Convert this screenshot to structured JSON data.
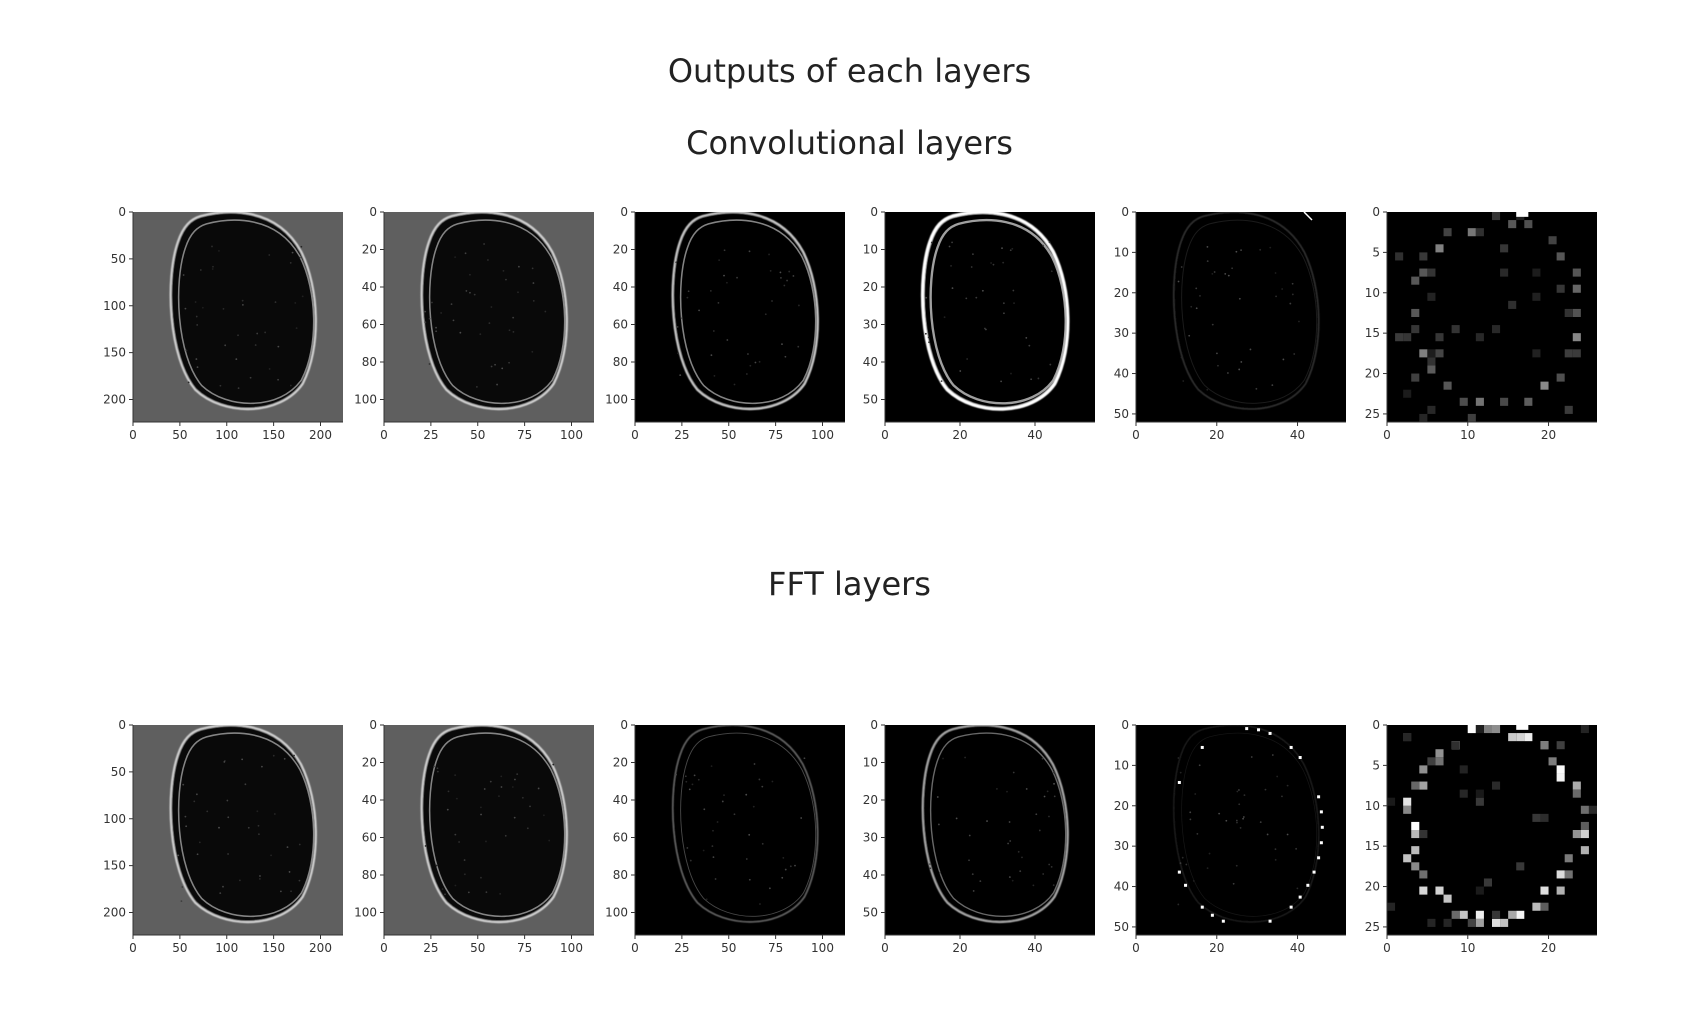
{
  "figure": {
    "title": "Outputs of each layers",
    "sections": [
      {
        "title": "Convolutional layers",
        "key": "conv"
      },
      {
        "title": "FFT layers",
        "key": "fft"
      }
    ]
  },
  "chart_data": [
    {
      "type": "heatmap",
      "section": "Convolutional layers",
      "index": 1,
      "style": "conv",
      "background": "gray",
      "xlim": [
        0,
        224
      ],
      "ylim": [
        224,
        0
      ],
      "xticks": [
        "0",
        "50",
        "100",
        "150",
        "200"
      ],
      "yticks": [
        "0",
        "50",
        "100",
        "150",
        "200"
      ],
      "xtick_values": [
        0,
        50,
        100,
        150,
        200
      ],
      "ytick_values": [
        0,
        50,
        100,
        150,
        200
      ],
      "grid": false
    },
    {
      "type": "heatmap",
      "section": "Convolutional layers",
      "index": 2,
      "style": "conv",
      "background": "gray",
      "xlim": [
        0,
        112
      ],
      "ylim": [
        112,
        0
      ],
      "xticks": [
        "0",
        "25",
        "50",
        "75",
        "100"
      ],
      "yticks": [
        "0",
        "20",
        "40",
        "60",
        "80",
        "100"
      ],
      "xtick_values": [
        0,
        25,
        50,
        75,
        100
      ],
      "ytick_values": [
        0,
        20,
        40,
        60,
        80,
        100
      ],
      "grid": false
    },
    {
      "type": "heatmap",
      "section": "Convolutional layers",
      "index": 3,
      "style": "conv",
      "background": "black",
      "xlim": [
        0,
        112
      ],
      "ylim": [
        112,
        0
      ],
      "xticks": [
        "0",
        "25",
        "50",
        "75",
        "100"
      ],
      "yticks": [
        "0",
        "20",
        "40",
        "60",
        "80",
        "100"
      ],
      "xtick_values": [
        0,
        25,
        50,
        75,
        100
      ],
      "ytick_values": [
        0,
        20,
        40,
        60,
        80,
        100
      ],
      "grid": false
    },
    {
      "type": "heatmap",
      "section": "Convolutional layers",
      "index": 4,
      "style": "conv-bright",
      "background": "black",
      "xlim": [
        0,
        56
      ],
      "ylim": [
        56,
        0
      ],
      "xticks": [
        "0",
        "20",
        "40"
      ],
      "yticks": [
        "0",
        "10",
        "20",
        "30",
        "40",
        "50"
      ],
      "xtick_values": [
        0,
        20,
        40
      ],
      "ytick_values": [
        0,
        10,
        20,
        30,
        40,
        50
      ],
      "grid": false
    },
    {
      "type": "heatmap",
      "section": "Convolutional layers",
      "index": 5,
      "style": "conv-dim",
      "background": "black",
      "xlim": [
        0,
        52
      ],
      "ylim": [
        52,
        0
      ],
      "xticks": [
        "0",
        "20",
        "40"
      ],
      "yticks": [
        "0",
        "10",
        "20",
        "30",
        "40",
        "50"
      ],
      "xtick_values": [
        0,
        20,
        40
      ],
      "ytick_values": [
        0,
        10,
        20,
        30,
        40,
        50
      ],
      "grid": false
    },
    {
      "type": "heatmap",
      "section": "Convolutional layers",
      "index": 6,
      "style": "pixel-sparse",
      "background": "black",
      "xlim": [
        0,
        26
      ],
      "ylim": [
        26,
        0
      ],
      "xticks": [
        "0",
        "10",
        "20"
      ],
      "yticks": [
        "0",
        "5",
        "10",
        "15",
        "20",
        "25"
      ],
      "xtick_values": [
        0,
        10,
        20
      ],
      "ytick_values": [
        0,
        5,
        10,
        15,
        20,
        25
      ],
      "grid": false
    },
    {
      "type": "heatmap",
      "section": "FFT layers",
      "index": 1,
      "style": "conv",
      "background": "gray",
      "xlim": [
        0,
        224
      ],
      "ylim": [
        224,
        0
      ],
      "xticks": [
        "0",
        "50",
        "100",
        "150",
        "200"
      ],
      "yticks": [
        "0",
        "50",
        "100",
        "150",
        "200"
      ],
      "xtick_values": [
        0,
        50,
        100,
        150,
        200
      ],
      "ytick_values": [
        0,
        50,
        100,
        150,
        200
      ],
      "grid": false
    },
    {
      "type": "heatmap",
      "section": "FFT layers",
      "index": 2,
      "style": "conv",
      "background": "gray",
      "xlim": [
        0,
        112
      ],
      "ylim": [
        112,
        0
      ],
      "xticks": [
        "0",
        "25",
        "50",
        "75",
        "100"
      ],
      "yticks": [
        "0",
        "20",
        "40",
        "60",
        "80",
        "100"
      ],
      "xtick_values": [
        0,
        25,
        50,
        75,
        100
      ],
      "ytick_values": [
        0,
        20,
        40,
        60,
        80,
        100
      ],
      "grid": false
    },
    {
      "type": "heatmap",
      "section": "FFT layers",
      "index": 3,
      "style": "fft-dim",
      "background": "black",
      "xlim": [
        0,
        112
      ],
      "ylim": [
        112,
        0
      ],
      "xticks": [
        "0",
        "25",
        "50",
        "75",
        "100"
      ],
      "yticks": [
        "0",
        "20",
        "40",
        "60",
        "80",
        "100"
      ],
      "xtick_values": [
        0,
        25,
        50,
        75,
        100
      ],
      "ytick_values": [
        0,
        20,
        40,
        60,
        80,
        100
      ],
      "grid": false
    },
    {
      "type": "heatmap",
      "section": "FFT layers",
      "index": 4,
      "style": "fft-mid",
      "background": "black",
      "xlim": [
        0,
        56
      ],
      "ylim": [
        56,
        0
      ],
      "xticks": [
        "0",
        "20",
        "40"
      ],
      "yticks": [
        "0",
        "10",
        "20",
        "30",
        "40",
        "50"
      ],
      "xtick_values": [
        0,
        20,
        40
      ],
      "ytick_values": [
        0,
        10,
        20,
        30,
        40,
        50
      ],
      "grid": false
    },
    {
      "type": "heatmap",
      "section": "FFT layers",
      "index": 5,
      "style": "fft-dots",
      "background": "black",
      "xlim": [
        0,
        52
      ],
      "ylim": [
        52,
        0
      ],
      "xticks": [
        "0",
        "20",
        "40"
      ],
      "yticks": [
        "0",
        "10",
        "20",
        "30",
        "40",
        "50"
      ],
      "xtick_values": [
        0,
        20,
        40
      ],
      "ytick_values": [
        0,
        10,
        20,
        30,
        40,
        50
      ],
      "grid": false
    },
    {
      "type": "heatmap",
      "section": "FFT layers",
      "index": 6,
      "style": "pixel-dense",
      "background": "black",
      "xlim": [
        0,
        26
      ],
      "ylim": [
        26,
        0
      ],
      "xticks": [
        "0",
        "10",
        "20"
      ],
      "yticks": [
        "0",
        "5",
        "10",
        "15",
        "20",
        "25"
      ],
      "xtick_values": [
        0,
        10,
        20
      ],
      "ytick_values": [
        0,
        5,
        10,
        15,
        20,
        25
      ],
      "grid": false
    }
  ],
  "colors": {
    "gray_background": "#5f5f5f",
    "black_background": "#000000",
    "edge": "#ffffff",
    "axis": "#333333"
  }
}
